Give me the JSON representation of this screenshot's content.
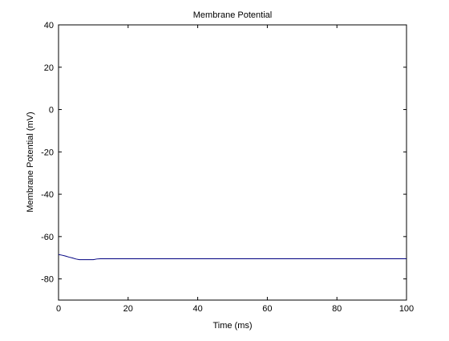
{
  "chart_data": {
    "type": "line",
    "title": "Membrane Potential",
    "xlabel": "Time (ms)",
    "ylabel": "Membrane Potential (mV)",
    "xlim": [
      0,
      100
    ],
    "ylim": [
      -90,
      40
    ],
    "xticks": [
      0,
      20,
      40,
      60,
      80,
      100
    ],
    "yticks": [
      -80,
      -60,
      -40,
      -20,
      0,
      20,
      40
    ],
    "grid": false,
    "legend": "none",
    "series": [
      {
        "color": "#000080",
        "x": [
          0,
          1,
          2,
          3,
          4,
          5,
          6,
          8,
          10,
          11,
          12,
          20,
          40,
          60,
          80,
          100
        ],
        "y": [
          -68.5,
          -68.8,
          -69.2,
          -69.7,
          -70.1,
          -70.6,
          -70.9,
          -70.9,
          -70.9,
          -70.6,
          -70.5,
          -70.5,
          -70.5,
          -70.5,
          -70.5,
          -70.5
        ]
      }
    ]
  }
}
